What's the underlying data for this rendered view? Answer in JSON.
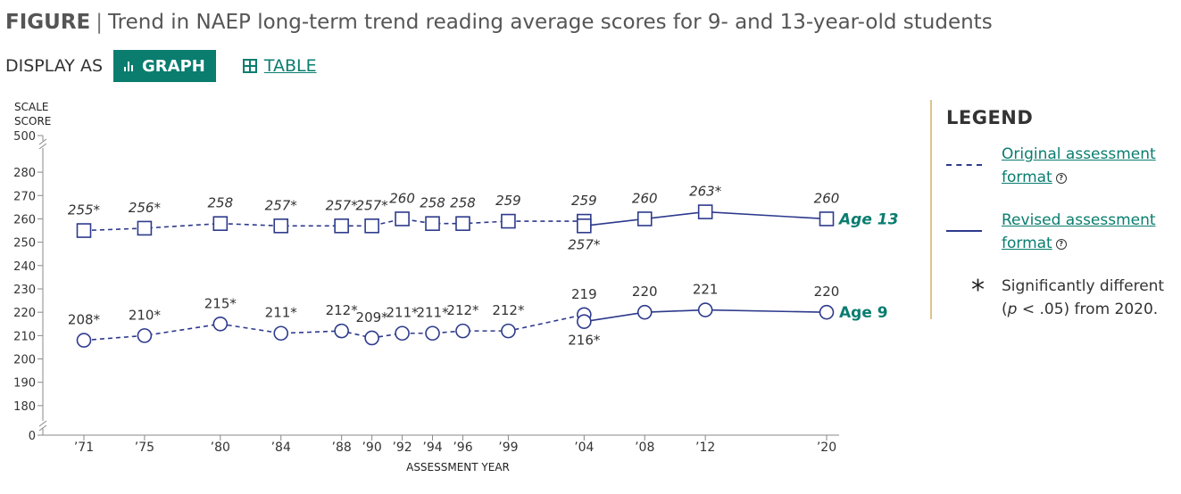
{
  "figure": {
    "label": "FIGURE",
    "separator": "|",
    "title": "Trend in NAEP long-term trend reading average scores for 9- and 13-year-old students"
  },
  "display": {
    "label": "DISPLAY AS",
    "graph_button": "GRAPH",
    "table_button": "TABLE"
  },
  "legend": {
    "title": "LEGEND",
    "items": [
      {
        "label": "Original assessment format",
        "line_style": "dashed",
        "icon": "help-circle-icon"
      },
      {
        "label": "Revised assessment format",
        "line_style": "solid",
        "icon": "help-circle-icon"
      }
    ],
    "significance": {
      "symbol": "*",
      "text_line1": "Significantly different",
      "text_line2_pre": "(",
      "text_line2_p": "p",
      "text_line2_post": " < .05) from 2020."
    }
  },
  "colors": {
    "accent": "#0a7d6f",
    "series_line": "#2d3a8c",
    "marker_stroke": "#2d3a8c",
    "axis": "#888888",
    "label_text": "#333333",
    "legend_divider": "#d9c48a"
  },
  "chart_data": {
    "type": "line",
    "title": "",
    "xlabel": "ASSESSMENT YEAR",
    "ylabel": "SCALE SCORE",
    "ylabel_lines": [
      "SCALE",
      "SCORE"
    ],
    "y_ticks": [
      0,
      180,
      190,
      200,
      210,
      220,
      230,
      240,
      250,
      260,
      270,
      280,
      500
    ],
    "y_axis_break": true,
    "ylim_plot": [
      175,
      285
    ],
    "x_ticks": [
      {
        "year": 1971,
        "label": "’71"
      },
      {
        "year": 1975,
        "label": "’75"
      },
      {
        "year": 1980,
        "label": "’80"
      },
      {
        "year": 1984,
        "label": "’84"
      },
      {
        "year": 1988,
        "label": "’88"
      },
      {
        "year": 1990,
        "label": "’90"
      },
      {
        "year": 1992,
        "label": "’92"
      },
      {
        "year": 1994,
        "label": "’94"
      },
      {
        "year": 1996,
        "label": "’96"
      },
      {
        "year": 1999,
        "label": "’99"
      },
      {
        "year": 2004,
        "label": "’04"
      },
      {
        "year": 2008,
        "label": "’08"
      },
      {
        "year": 2012,
        "label": "’12"
      },
      {
        "year": 2020,
        "label": "’20"
      }
    ],
    "series": [
      {
        "name": "Age 13",
        "marker": "square",
        "label_style": "italic",
        "original": [
          {
            "year": 1971,
            "value": 255,
            "label": "255*"
          },
          {
            "year": 1975,
            "value": 256,
            "label": "256*"
          },
          {
            "year": 1980,
            "value": 258,
            "label": "258"
          },
          {
            "year": 1984,
            "value": 257,
            "label": "257*"
          },
          {
            "year": 1988,
            "value": 257,
            "label": "257*"
          },
          {
            "year": 1990,
            "value": 257,
            "label": "257*"
          },
          {
            "year": 1992,
            "value": 260,
            "label": "260"
          },
          {
            "year": 1994,
            "value": 258,
            "label": "258"
          },
          {
            "year": 1996,
            "value": 258,
            "label": "258"
          },
          {
            "year": 1999,
            "value": 259,
            "label": "259"
          },
          {
            "year": 2004,
            "value": 259,
            "label": "259"
          }
        ],
        "revised": [
          {
            "year": 2004,
            "value": 257,
            "label": "257*",
            "label_below": true
          },
          {
            "year": 2008,
            "value": 260,
            "label": "260"
          },
          {
            "year": 2012,
            "value": 263,
            "label": "263*"
          },
          {
            "year": 2020,
            "value": 260,
            "label": "260"
          }
        ]
      },
      {
        "name": "Age 9",
        "marker": "circle",
        "label_style": "normal",
        "original": [
          {
            "year": 1971,
            "value": 208,
            "label": "208*"
          },
          {
            "year": 1975,
            "value": 210,
            "label": "210*"
          },
          {
            "year": 1980,
            "value": 215,
            "label": "215*"
          },
          {
            "year": 1984,
            "value": 211,
            "label": "211*"
          },
          {
            "year": 1988,
            "value": 212,
            "label": "212*"
          },
          {
            "year": 1990,
            "value": 209,
            "label": "209*"
          },
          {
            "year": 1992,
            "value": 211,
            "label": "211*"
          },
          {
            "year": 1994,
            "value": 211,
            "label": "211*"
          },
          {
            "year": 1996,
            "value": 212,
            "label": "212*"
          },
          {
            "year": 1999,
            "value": 212,
            "label": "212*"
          },
          {
            "year": 2004,
            "value": 219,
            "label": "219"
          }
        ],
        "revised": [
          {
            "year": 2004,
            "value": 216,
            "label": "216*",
            "label_below": true
          },
          {
            "year": 2008,
            "value": 220,
            "label": "220"
          },
          {
            "year": 2012,
            "value": 221,
            "label": "221"
          },
          {
            "year": 2020,
            "value": 220,
            "label": "220"
          }
        ]
      }
    ]
  }
}
